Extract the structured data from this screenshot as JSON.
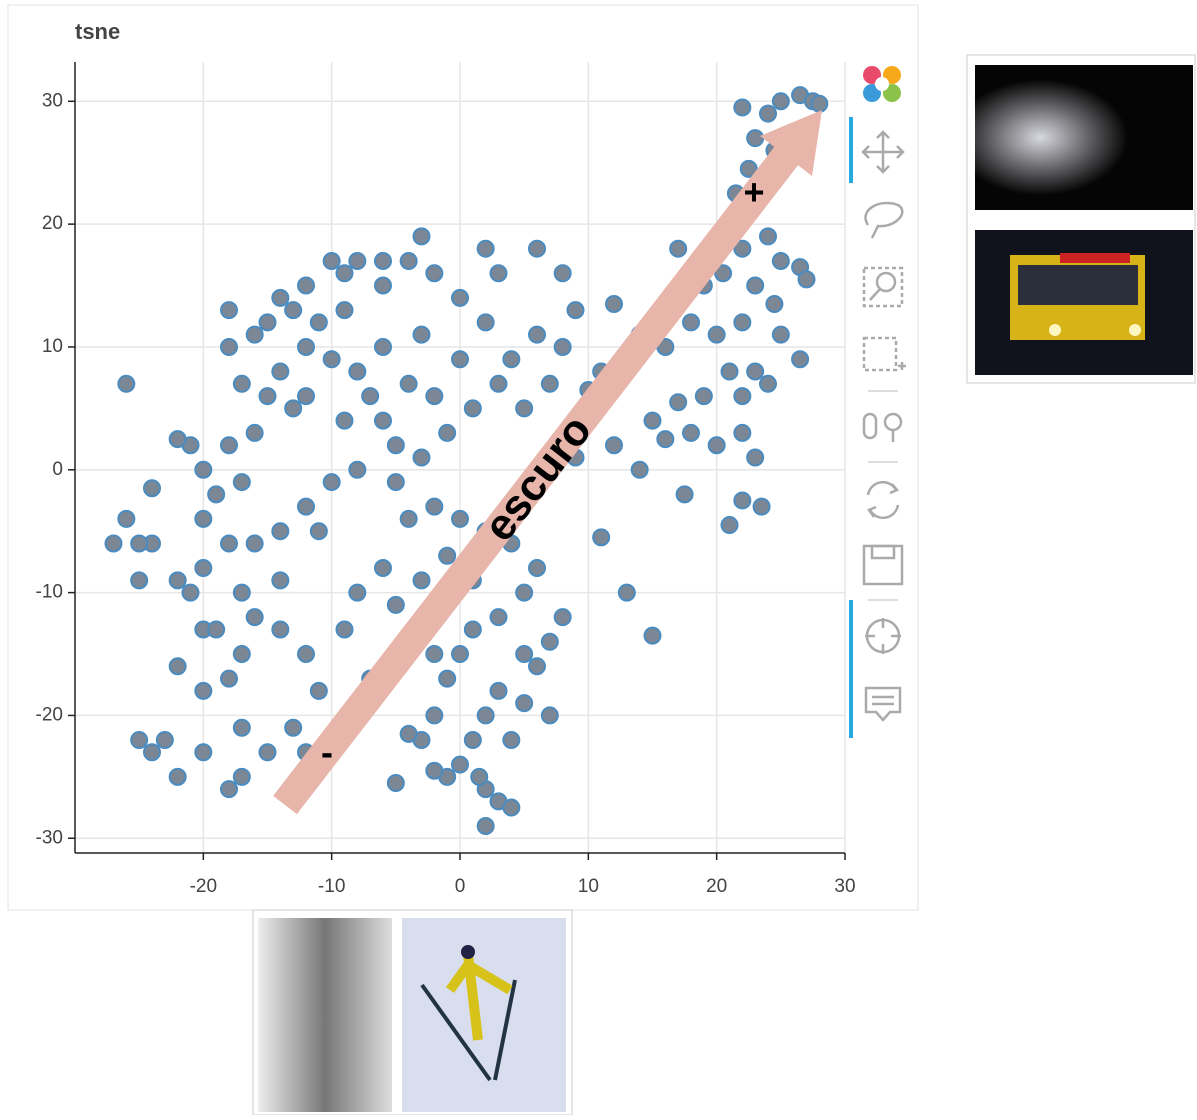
{
  "chart_data": {
    "type": "scatter",
    "title": "tsne",
    "x": [
      22,
      24,
      25,
      26.5,
      27.5,
      28,
      23,
      24.5,
      22.5,
      23.5,
      21.5,
      22,
      24,
      22,
      25,
      26.5,
      27,
      20.5,
      19,
      17,
      23,
      24.5,
      22,
      25,
      20,
      18,
      16,
      21,
      23,
      26.5,
      24,
      22,
      19,
      17,
      15,
      16,
      18,
      20,
      22,
      23,
      17.5,
      21,
      22,
      23.5,
      14,
      12,
      13,
      11,
      10,
      12,
      9,
      14,
      11,
      13,
      15,
      8,
      7,
      6,
      5,
      3,
      2,
      1,
      0,
      2,
      3,
      4,
      1.5,
      -1,
      -2,
      -3,
      -4,
      -5,
      -2,
      -1,
      0,
      1,
      3,
      5,
      6,
      4,
      2,
      0,
      -2,
      -4,
      -5,
      -3,
      -1,
      1,
      3,
      5,
      7,
      8,
      6,
      4,
      2,
      0,
      -2,
      -4,
      -6,
      -8,
      -10,
      -9,
      -11,
      -13,
      -12,
      -14,
      -13,
      -15,
      -16,
      -18,
      -17,
      -19,
      -20,
      -21,
      -22,
      -20,
      -22,
      -24,
      -25,
      -26,
      -27,
      -25,
      -24,
      -26,
      -18,
      -18,
      -17,
      -16,
      -14,
      -15,
      -12,
      -10,
      -8,
      -7,
      -6,
      -5,
      -8,
      -10,
      -12,
      -14,
      -16,
      -18,
      -20,
      -21,
      -20,
      -22,
      -20,
      -18,
      -17,
      -16,
      -14,
      -12,
      -11,
      -13,
      -15,
      -17,
      -18,
      -20,
      -22,
      -24,
      -25,
      -23,
      -17,
      -12,
      -10,
      -8,
      -7,
      -9,
      -8,
      -6,
      -5,
      -3,
      -1,
      1,
      -2,
      5,
      7,
      4,
      2,
      9,
      6,
      8,
      2,
      3,
      -3,
      -6,
      -9,
      -12,
      -17,
      -19,
      -14,
      0,
      -3,
      -4,
      -6,
      -2,
      -9,
      -11
    ],
    "y": [
      29.5,
      29,
      30,
      30.5,
      30,
      29.8,
      27,
      26,
      24.5,
      23,
      22.5,
      21,
      19,
      18,
      17,
      16.5,
      15.5,
      16,
      15,
      18,
      15,
      13.5,
      12,
      11,
      11,
      12,
      10,
      8,
      8,
      9,
      7,
      6,
      6,
      5.5,
      4,
      2.5,
      3,
      2,
      3,
      1,
      -2,
      -4.5,
      -2.5,
      -3,
      11,
      13.5,
      9,
      8,
      6.5,
      2,
      1,
      0,
      -5.5,
      -10,
      -13.5,
      -12,
      -14,
      -16,
      -19,
      -18,
      -20,
      -22,
      -24,
      -26,
      -27,
      -27.5,
      -25,
      -25,
      -24.5,
      -22,
      -21.5,
      -25.5,
      -20,
      -17,
      -15,
      -13,
      -12,
      -10,
      -8,
      -6,
      -5,
      -4,
      -3,
      -4,
      -1,
      1,
      3,
      5,
      7,
      5,
      7,
      10,
      11,
      9,
      12,
      14,
      16,
      17,
      15,
      17,
      17,
      13,
      12,
      13,
      10,
      8,
      5,
      6,
      3,
      2,
      -1,
      -2,
      0,
      2,
      2.5,
      -4,
      -9,
      -6,
      -6,
      -4,
      -6,
      -9,
      -1.5,
      7,
      10,
      13,
      7,
      11,
      14,
      12,
      6,
      9,
      8,
      6,
      4,
      2,
      0,
      -1,
      -3,
      -5,
      -6,
      -6,
      -8,
      -10,
      -13,
      -16,
      -18,
      -17,
      -15,
      -12,
      -13,
      -15,
      -18,
      -21,
      -23,
      -25,
      -26,
      -23,
      -25,
      -23,
      -22,
      -22,
      -21,
      -23,
      -22,
      -19,
      -17,
      -13,
      -10,
      -8,
      -11,
      -9,
      -7,
      -9,
      -15,
      -15,
      -20,
      -22,
      -29,
      13,
      18,
      16,
      18,
      16,
      19,
      17,
      16,
      15,
      -10,
      -13,
      -9,
      9,
      11,
      7,
      10,
      6,
      4,
      -5
    ],
    "color": "#7b8795",
    "edge_color": "#4a8bc0",
    "xlim": [
      -30,
      30
    ],
    "ylim": [
      -31.2,
      33.2
    ],
    "xticks": [
      -20,
      -10,
      0,
      10,
      20,
      30
    ],
    "yticks": [
      -30,
      -20,
      -10,
      0,
      10,
      20,
      30
    ],
    "grid": true,
    "annotations": [
      "escuro",
      "+",
      "-"
    ]
  }
}
